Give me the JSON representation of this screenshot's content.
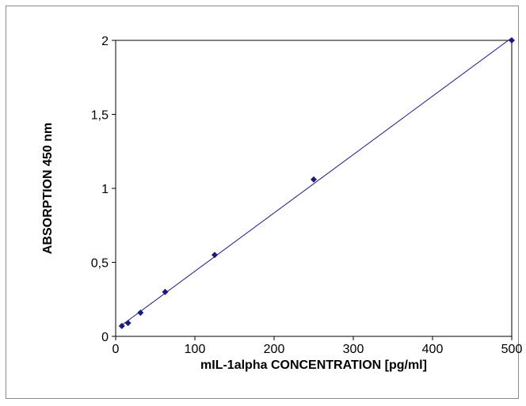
{
  "chart_data": {
    "type": "scatter",
    "title": "",
    "xlabel": "mIL-1alpha CONCENTRATION [pg/ml]",
    "ylabel": "ABSORPTION 450 nm",
    "xlim": [
      0,
      500
    ],
    "ylim": [
      0,
      2
    ],
    "xticks": [
      "0",
      "100",
      "200",
      "300",
      "400",
      "500"
    ],
    "yticks": [
      "0",
      "0,5",
      "1",
      "1,5",
      "2"
    ],
    "grid": false,
    "legend": "none",
    "trendline": "linear",
    "series": [
      {
        "color": "#1a1a80",
        "points": [
          {
            "x": 7.8,
            "y": 0.07
          },
          {
            "x": 15.6,
            "y": 0.09
          },
          {
            "x": 31.3,
            "y": 0.16
          },
          {
            "x": 62.5,
            "y": 0.3
          },
          {
            "x": 125,
            "y": 0.55
          },
          {
            "x": 250,
            "y": 1.06
          },
          {
            "x": 500,
            "y": 2.0
          }
        ]
      }
    ]
  }
}
